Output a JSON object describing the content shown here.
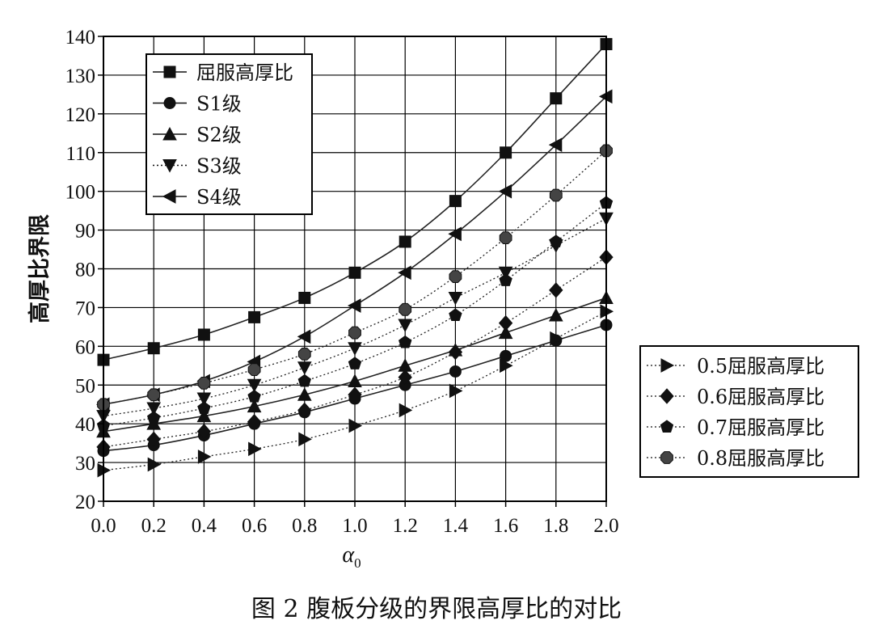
{
  "chart_data": {
    "type": "line",
    "title": "",
    "caption": "图 2   腹板分级的界限高厚比的对比",
    "xlabel": "α",
    "xlabel_sub": "0",
    "ylabel": "高厚比界限",
    "xlim": [
      0.0,
      2.0
    ],
    "ylim": [
      20,
      140
    ],
    "x_ticks": [
      "0.0",
      "0.2",
      "0.4",
      "0.6",
      "0.8",
      "1.0",
      "1.2",
      "1.4",
      "1.6",
      "1.8",
      "2.0"
    ],
    "y_ticks": [
      "20",
      "30",
      "40",
      "50",
      "60",
      "70",
      "80",
      "90",
      "100",
      "110",
      "120",
      "130",
      "140"
    ],
    "grid": true,
    "x": [
      0.0,
      0.2,
      0.4,
      0.6,
      0.8,
      1.0,
      1.2,
      1.4,
      1.6,
      1.8,
      2.0
    ],
    "legend_main": "top-left",
    "legend_secondary": "outside-right",
    "series": [
      {
        "name": "屈服高厚比",
        "marker": "square",
        "line": "solid",
        "values": [
          56.5,
          59.5,
          63.0,
          67.5,
          72.5,
          79.0,
          87.0,
          97.5,
          110.0,
          124.0,
          138.0
        ]
      },
      {
        "name": "S1级",
        "marker": "circle",
        "line": "solid",
        "values": [
          33.0,
          34.5,
          37.0,
          40.0,
          43.0,
          46.5,
          50.0,
          53.5,
          57.5,
          61.5,
          65.5
        ]
      },
      {
        "name": "S2级",
        "marker": "triangle-up",
        "line": "solid",
        "values": [
          38.0,
          40.0,
          42.0,
          44.5,
          47.5,
          51.0,
          55.0,
          59.0,
          63.5,
          68.0,
          72.5
        ]
      },
      {
        "name": "S3级",
        "marker": "triangle-down",
        "line": "dotted",
        "values": [
          42.0,
          44.0,
          46.5,
          50.0,
          54.5,
          59.5,
          65.5,
          72.5,
          79.0,
          86.0,
          93.0
        ]
      },
      {
        "name": "S4级",
        "marker": "triangle-left",
        "line": "solid",
        "values": [
          45.0,
          47.5,
          51.0,
          56.0,
          62.5,
          70.5,
          79.0,
          89.0,
          100.0,
          112.0,
          124.5
        ]
      },
      {
        "name": "0.5屈服高厚比",
        "marker": "triangle-right",
        "line": "dotted",
        "values": [
          28.0,
          29.5,
          31.5,
          33.5,
          36.0,
          39.5,
          43.5,
          48.5,
          55.0,
          62.0,
          69.0
        ]
      },
      {
        "name": "0.6屈服高厚比",
        "marker": "diamond",
        "line": "dotted",
        "values": [
          34.0,
          36.0,
          38.0,
          40.5,
          43.5,
          47.5,
          52.0,
          58.5,
          66.0,
          74.5,
          83.0
        ]
      },
      {
        "name": "0.7屈服高厚比",
        "marker": "pentagon",
        "line": "dotted",
        "values": [
          39.5,
          41.5,
          44.0,
          47.0,
          51.0,
          55.5,
          61.0,
          68.0,
          77.0,
          87.0,
          97.0
        ]
      },
      {
        "name": "0.8屈服高厚比",
        "marker": "octagon",
        "line": "dotted",
        "values": [
          45.0,
          47.5,
          50.5,
          54.0,
          58.0,
          63.5,
          69.5,
          78.0,
          88.0,
          99.0,
          110.5
        ]
      }
    ]
  }
}
